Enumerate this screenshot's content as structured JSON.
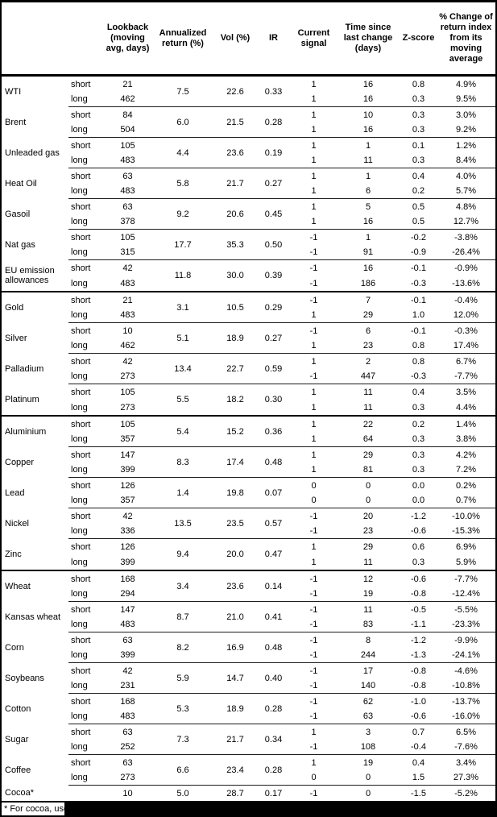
{
  "table": {
    "headers": {
      "lookback": "Lookback (moving avg, days)",
      "annualized": "Annualized return (%)",
      "vol": "Vol (%)",
      "ir": "IR",
      "signal": "Current signal",
      "time": "Time since last change (days)",
      "zscore": "Z-score",
      "change": "% Change of return index from its moving average"
    },
    "row_labels": {
      "short": "short",
      "long": "long"
    },
    "commodities": [
      {
        "name": "WTI",
        "annualized": "7.5",
        "vol": "22.6",
        "ir": "0.33",
        "short": {
          "lookback": "21",
          "signal": "1",
          "time": "16",
          "zscore": "0.8",
          "change": "4.9%"
        },
        "long": {
          "lookback": "462",
          "signal": "1",
          "time": "16",
          "zscore": "0.3",
          "change": "9.5%"
        }
      },
      {
        "name": "Brent",
        "annualized": "6.0",
        "vol": "21.5",
        "ir": "0.28",
        "short": {
          "lookback": "84",
          "signal": "1",
          "time": "10",
          "zscore": "0.3",
          "change": "3.0%"
        },
        "long": {
          "lookback": "504",
          "signal": "1",
          "time": "16",
          "zscore": "0.3",
          "change": "9.2%"
        }
      },
      {
        "name": "Unleaded gas",
        "annualized": "4.4",
        "vol": "23.6",
        "ir": "0.19",
        "short": {
          "lookback": "105",
          "signal": "1",
          "time": "1",
          "zscore": "0.1",
          "change": "1.2%"
        },
        "long": {
          "lookback": "483",
          "signal": "1",
          "time": "11",
          "zscore": "0.3",
          "change": "8.4%"
        }
      },
      {
        "name": "Heat Oil",
        "annualized": "5.8",
        "vol": "21.7",
        "ir": "0.27",
        "short": {
          "lookback": "63",
          "signal": "1",
          "time": "1",
          "zscore": "0.4",
          "change": "4.0%"
        },
        "long": {
          "lookback": "483",
          "signal": "1",
          "time": "6",
          "zscore": "0.2",
          "change": "5.7%"
        }
      },
      {
        "name": "Gasoil",
        "annualized": "9.2",
        "vol": "20.6",
        "ir": "0.45",
        "short": {
          "lookback": "63",
          "signal": "1",
          "time": "5",
          "zscore": "0.5",
          "change": "4.8%"
        },
        "long": {
          "lookback": "378",
          "signal": "1",
          "time": "16",
          "zscore": "0.5",
          "change": "12.7%"
        }
      },
      {
        "name": "Nat gas",
        "annualized": "17.7",
        "vol": "35.3",
        "ir": "0.50",
        "short": {
          "lookback": "105",
          "signal": "-1",
          "time": "1",
          "zscore": "-0.2",
          "change": "-3.8%"
        },
        "long": {
          "lookback": "315",
          "signal": "-1",
          "time": "91",
          "zscore": "-0.9",
          "change": "-26.4%"
        }
      },
      {
        "name": "EU emission allowances",
        "group_end": true,
        "annualized": "11.8",
        "vol": "30.0",
        "ir": "0.39",
        "short": {
          "lookback": "42",
          "signal": "-1",
          "time": "16",
          "zscore": "-0.1",
          "change": "-0.9%"
        },
        "long": {
          "lookback": "483",
          "signal": "-1",
          "time": "186",
          "zscore": "-0.3",
          "change": "-13.6%"
        }
      },
      {
        "name": "Gold",
        "annualized": "3.1",
        "vol": "10.5",
        "ir": "0.29",
        "short": {
          "lookback": "21",
          "signal": "-1",
          "time": "7",
          "zscore": "-0.1",
          "change": "-0.4%"
        },
        "long": {
          "lookback": "483",
          "signal": "1",
          "time": "29",
          "zscore": "1.0",
          "change": "12.0%"
        }
      },
      {
        "name": "Silver",
        "annualized": "5.1",
        "vol": "18.9",
        "ir": "0.27",
        "short": {
          "lookback": "10",
          "signal": "-1",
          "time": "6",
          "zscore": "-0.1",
          "change": "-0.3%"
        },
        "long": {
          "lookback": "462",
          "signal": "1",
          "time": "23",
          "zscore": "0.8",
          "change": "17.4%"
        }
      },
      {
        "name": "Palladium",
        "annualized": "13.4",
        "vol": "22.7",
        "ir": "0.59",
        "short": {
          "lookback": "42",
          "signal": "1",
          "time": "2",
          "zscore": "0.8",
          "change": "6.7%"
        },
        "long": {
          "lookback": "273",
          "signal": "-1",
          "time": "447",
          "zscore": "-0.3",
          "change": "-7.7%"
        }
      },
      {
        "name": "Platinum",
        "group_end": true,
        "annualized": "5.5",
        "vol": "18.2",
        "ir": "0.30",
        "short": {
          "lookback": "105",
          "signal": "1",
          "time": "11",
          "zscore": "0.4",
          "change": "3.5%"
        },
        "long": {
          "lookback": "273",
          "signal": "1",
          "time": "11",
          "zscore": "0.3",
          "change": "4.4%"
        }
      },
      {
        "name": "Aluminium",
        "annualized": "5.4",
        "vol": "15.2",
        "ir": "0.36",
        "short": {
          "lookback": "105",
          "signal": "1",
          "time": "22",
          "zscore": "0.2",
          "change": "1.4%"
        },
        "long": {
          "lookback": "357",
          "signal": "1",
          "time": "64",
          "zscore": "0.3",
          "change": "3.8%"
        }
      },
      {
        "name": "Copper",
        "annualized": "8.3",
        "vol": "17.4",
        "ir": "0.48",
        "short": {
          "lookback": "147",
          "signal": "1",
          "time": "29",
          "zscore": "0.3",
          "change": "4.2%"
        },
        "long": {
          "lookback": "399",
          "signal": "1",
          "time": "81",
          "zscore": "0.3",
          "change": "7.2%"
        }
      },
      {
        "name": "Lead",
        "annualized": "1.4",
        "vol": "19.8",
        "ir": "0.07",
        "short": {
          "lookback": "126",
          "signal": "0",
          "time": "0",
          "zscore": "0.0",
          "change": "0.2%"
        },
        "long": {
          "lookback": "357",
          "signal": "0",
          "time": "0",
          "zscore": "0.0",
          "change": "0.7%"
        }
      },
      {
        "name": "Nickel",
        "annualized": "13.5",
        "vol": "23.5",
        "ir": "0.57",
        "short": {
          "lookback": "42",
          "signal": "-1",
          "time": "20",
          "zscore": "-1.2",
          "change": "-10.0%"
        },
        "long": {
          "lookback": "336",
          "signal": "-1",
          "time": "23",
          "zscore": "-0.6",
          "change": "-15.3%"
        }
      },
      {
        "name": "Zinc",
        "group_end": true,
        "annualized": "9.4",
        "vol": "20.0",
        "ir": "0.47",
        "short": {
          "lookback": "126",
          "signal": "1",
          "time": "29",
          "zscore": "0.6",
          "change": "6.9%"
        },
        "long": {
          "lookback": "399",
          "signal": "1",
          "time": "11",
          "zscore": "0.3",
          "change": "5.9%"
        }
      },
      {
        "name": "Wheat",
        "annualized": "3.4",
        "vol": "23.6",
        "ir": "0.14",
        "short": {
          "lookback": "168",
          "signal": "-1",
          "time": "12",
          "zscore": "-0.6",
          "change": "-7.7%"
        },
        "long": {
          "lookback": "294",
          "signal": "-1",
          "time": "19",
          "zscore": "-0.8",
          "change": "-12.4%"
        }
      },
      {
        "name": "Kansas wheat",
        "annualized": "8.7",
        "vol": "21.0",
        "ir": "0.41",
        "short": {
          "lookback": "147",
          "signal": "-1",
          "time": "11",
          "zscore": "-0.5",
          "change": "-5.5%"
        },
        "long": {
          "lookback": "483",
          "signal": "-1",
          "time": "83",
          "zscore": "-1.1",
          "change": "-23.3%"
        }
      },
      {
        "name": "Corn",
        "annualized": "8.2",
        "vol": "16.9",
        "ir": "0.48",
        "short": {
          "lookback": "63",
          "signal": "-1",
          "time": "8",
          "zscore": "-1.2",
          "change": "-9.9%"
        },
        "long": {
          "lookback": "399",
          "signal": "-1",
          "time": "244",
          "zscore": "-1.3",
          "change": "-24.1%"
        }
      },
      {
        "name": "Soybeans",
        "annualized": "5.9",
        "vol": "14.7",
        "ir": "0.40",
        "short": {
          "lookback": "42",
          "signal": "-1",
          "time": "17",
          "zscore": "-0.8",
          "change": "-4.6%"
        },
        "long": {
          "lookback": "231",
          "signal": "-1",
          "time": "140",
          "zscore": "-0.8",
          "change": "-10.8%"
        }
      },
      {
        "name": "Cotton",
        "annualized": "5.3",
        "vol": "18.9",
        "ir": "0.28",
        "short": {
          "lookback": "168",
          "signal": "-1",
          "time": "62",
          "zscore": "-1.0",
          "change": "-13.7%"
        },
        "long": {
          "lookback": "483",
          "signal": "-1",
          "time": "63",
          "zscore": "-0.6",
          "change": "-16.0%"
        }
      },
      {
        "name": "Sugar",
        "annualized": "7.3",
        "vol": "21.7",
        "ir": "0.34",
        "short": {
          "lookback": "63",
          "signal": "1",
          "time": "3",
          "zscore": "0.7",
          "change": "6.5%"
        },
        "long": {
          "lookback": "252",
          "signal": "-1",
          "time": "108",
          "zscore": "-0.4",
          "change": "-7.6%"
        }
      },
      {
        "name": "Coffee",
        "annualized": "6.6",
        "vol": "23.4",
        "ir": "0.28",
        "short": {
          "lookback": "63",
          "signal": "1",
          "time": "19",
          "zscore": "0.4",
          "change": "3.4%"
        },
        "long": {
          "lookback": "273",
          "signal": "0",
          "time": "0",
          "zscore": "1.5",
          "change": "27.3%"
        }
      },
      {
        "name": "Cocoa*",
        "single": true,
        "group_end": true,
        "annualized": "5.0",
        "vol": "28.7",
        "ir": "0.17",
        "short": {
          "lookback": "10",
          "signal": "-1",
          "time": "0",
          "zscore": "-1.5",
          "change": "-5.2%"
        }
      }
    ]
  },
  "footnote": {
    "text": "* For cocoa, uses"
  }
}
